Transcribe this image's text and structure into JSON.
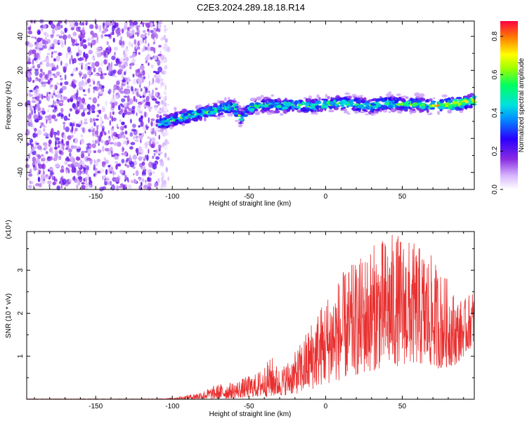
{
  "title": "C2E3.2024.289.18.18.R14",
  "chart_data": [
    {
      "type": "heatmap",
      "xlabel": "Height of straight line (km)",
      "ylabel": "Frequency (Hz)",
      "xlim": [
        -195,
        97
      ],
      "ylim": [
        -50,
        49
      ],
      "xticks": [
        -150,
        -100,
        -50,
        0,
        50
      ],
      "yticks": [
        -40,
        -20,
        0,
        20,
        40
      ],
      "colorbar": {
        "label": "Normalized spectral amplitude",
        "range": [
          0,
          0.88
        ],
        "ticks": [
          0.0,
          0.2,
          0.4,
          0.6,
          0.8
        ]
      },
      "noise_region_x": [
        -195,
        -108
      ],
      "signal_trace": {
        "x": [
          -108,
          -100,
          -90,
          -80,
          -70,
          -60,
          -55,
          -50,
          -40,
          -30,
          -20,
          -10,
          0,
          10,
          20,
          30,
          40,
          50,
          60,
          70,
          80,
          90,
          97
        ],
        "y": [
          -11,
          -9,
          -7,
          -5,
          -3,
          -1,
          -8,
          -2,
          0,
          -1,
          0,
          -1,
          0,
          1,
          0,
          -1,
          1,
          0,
          0,
          -1,
          0,
          1,
          2
        ]
      }
    },
    {
      "type": "line",
      "xlabel": "Height of straight line (km)",
      "ylabel": "SNR (10 * v/v)",
      "multiplier": "(x10⁴)",
      "xlim": [
        -195,
        97
      ],
      "ylim": [
        0,
        3.9
      ],
      "xticks": [
        -150,
        -100,
        -50,
        0,
        50
      ],
      "yticks": [
        1,
        2,
        3
      ],
      "color": "#e83030",
      "envelope": {
        "x": [
          -195,
          -110,
          -100,
          -90,
          -80,
          -70,
          -60,
          -50,
          -45,
          -40,
          -35,
          -30,
          -25,
          -20,
          -15,
          -10,
          -5,
          0,
          5,
          10,
          15,
          20,
          25,
          30,
          35,
          40,
          45,
          50,
          55,
          60,
          65,
          70,
          75,
          80,
          85,
          90,
          97
        ],
        "min": [
          0,
          0,
          0,
          0,
          0,
          0,
          0.02,
          0.04,
          0.05,
          0.06,
          0.05,
          0.08,
          0.1,
          0.12,
          0.15,
          0.2,
          0.3,
          0.35,
          0.4,
          0.45,
          0.5,
          0.55,
          0.6,
          0.65,
          0.7,
          0.75,
          0.75,
          0.8,
          0.8,
          0.8,
          0.75,
          0.75,
          0.7,
          0.75,
          0.8,
          1.0,
          1.3
        ],
        "max": [
          0.01,
          0.01,
          0.03,
          0.1,
          0.2,
          0.35,
          0.4,
          0.55,
          0.6,
          0.8,
          1.0,
          0.7,
          0.9,
          1.1,
          1.4,
          1.8,
          2.1,
          2.4,
          2.7,
          2.9,
          3.1,
          3.2,
          3.4,
          3.6,
          3.7,
          3.8,
          3.9,
          3.8,
          3.7,
          3.6,
          3.5,
          3.3,
          3.0,
          2.8,
          2.4,
          2.3,
          2.6
        ]
      }
    }
  ]
}
